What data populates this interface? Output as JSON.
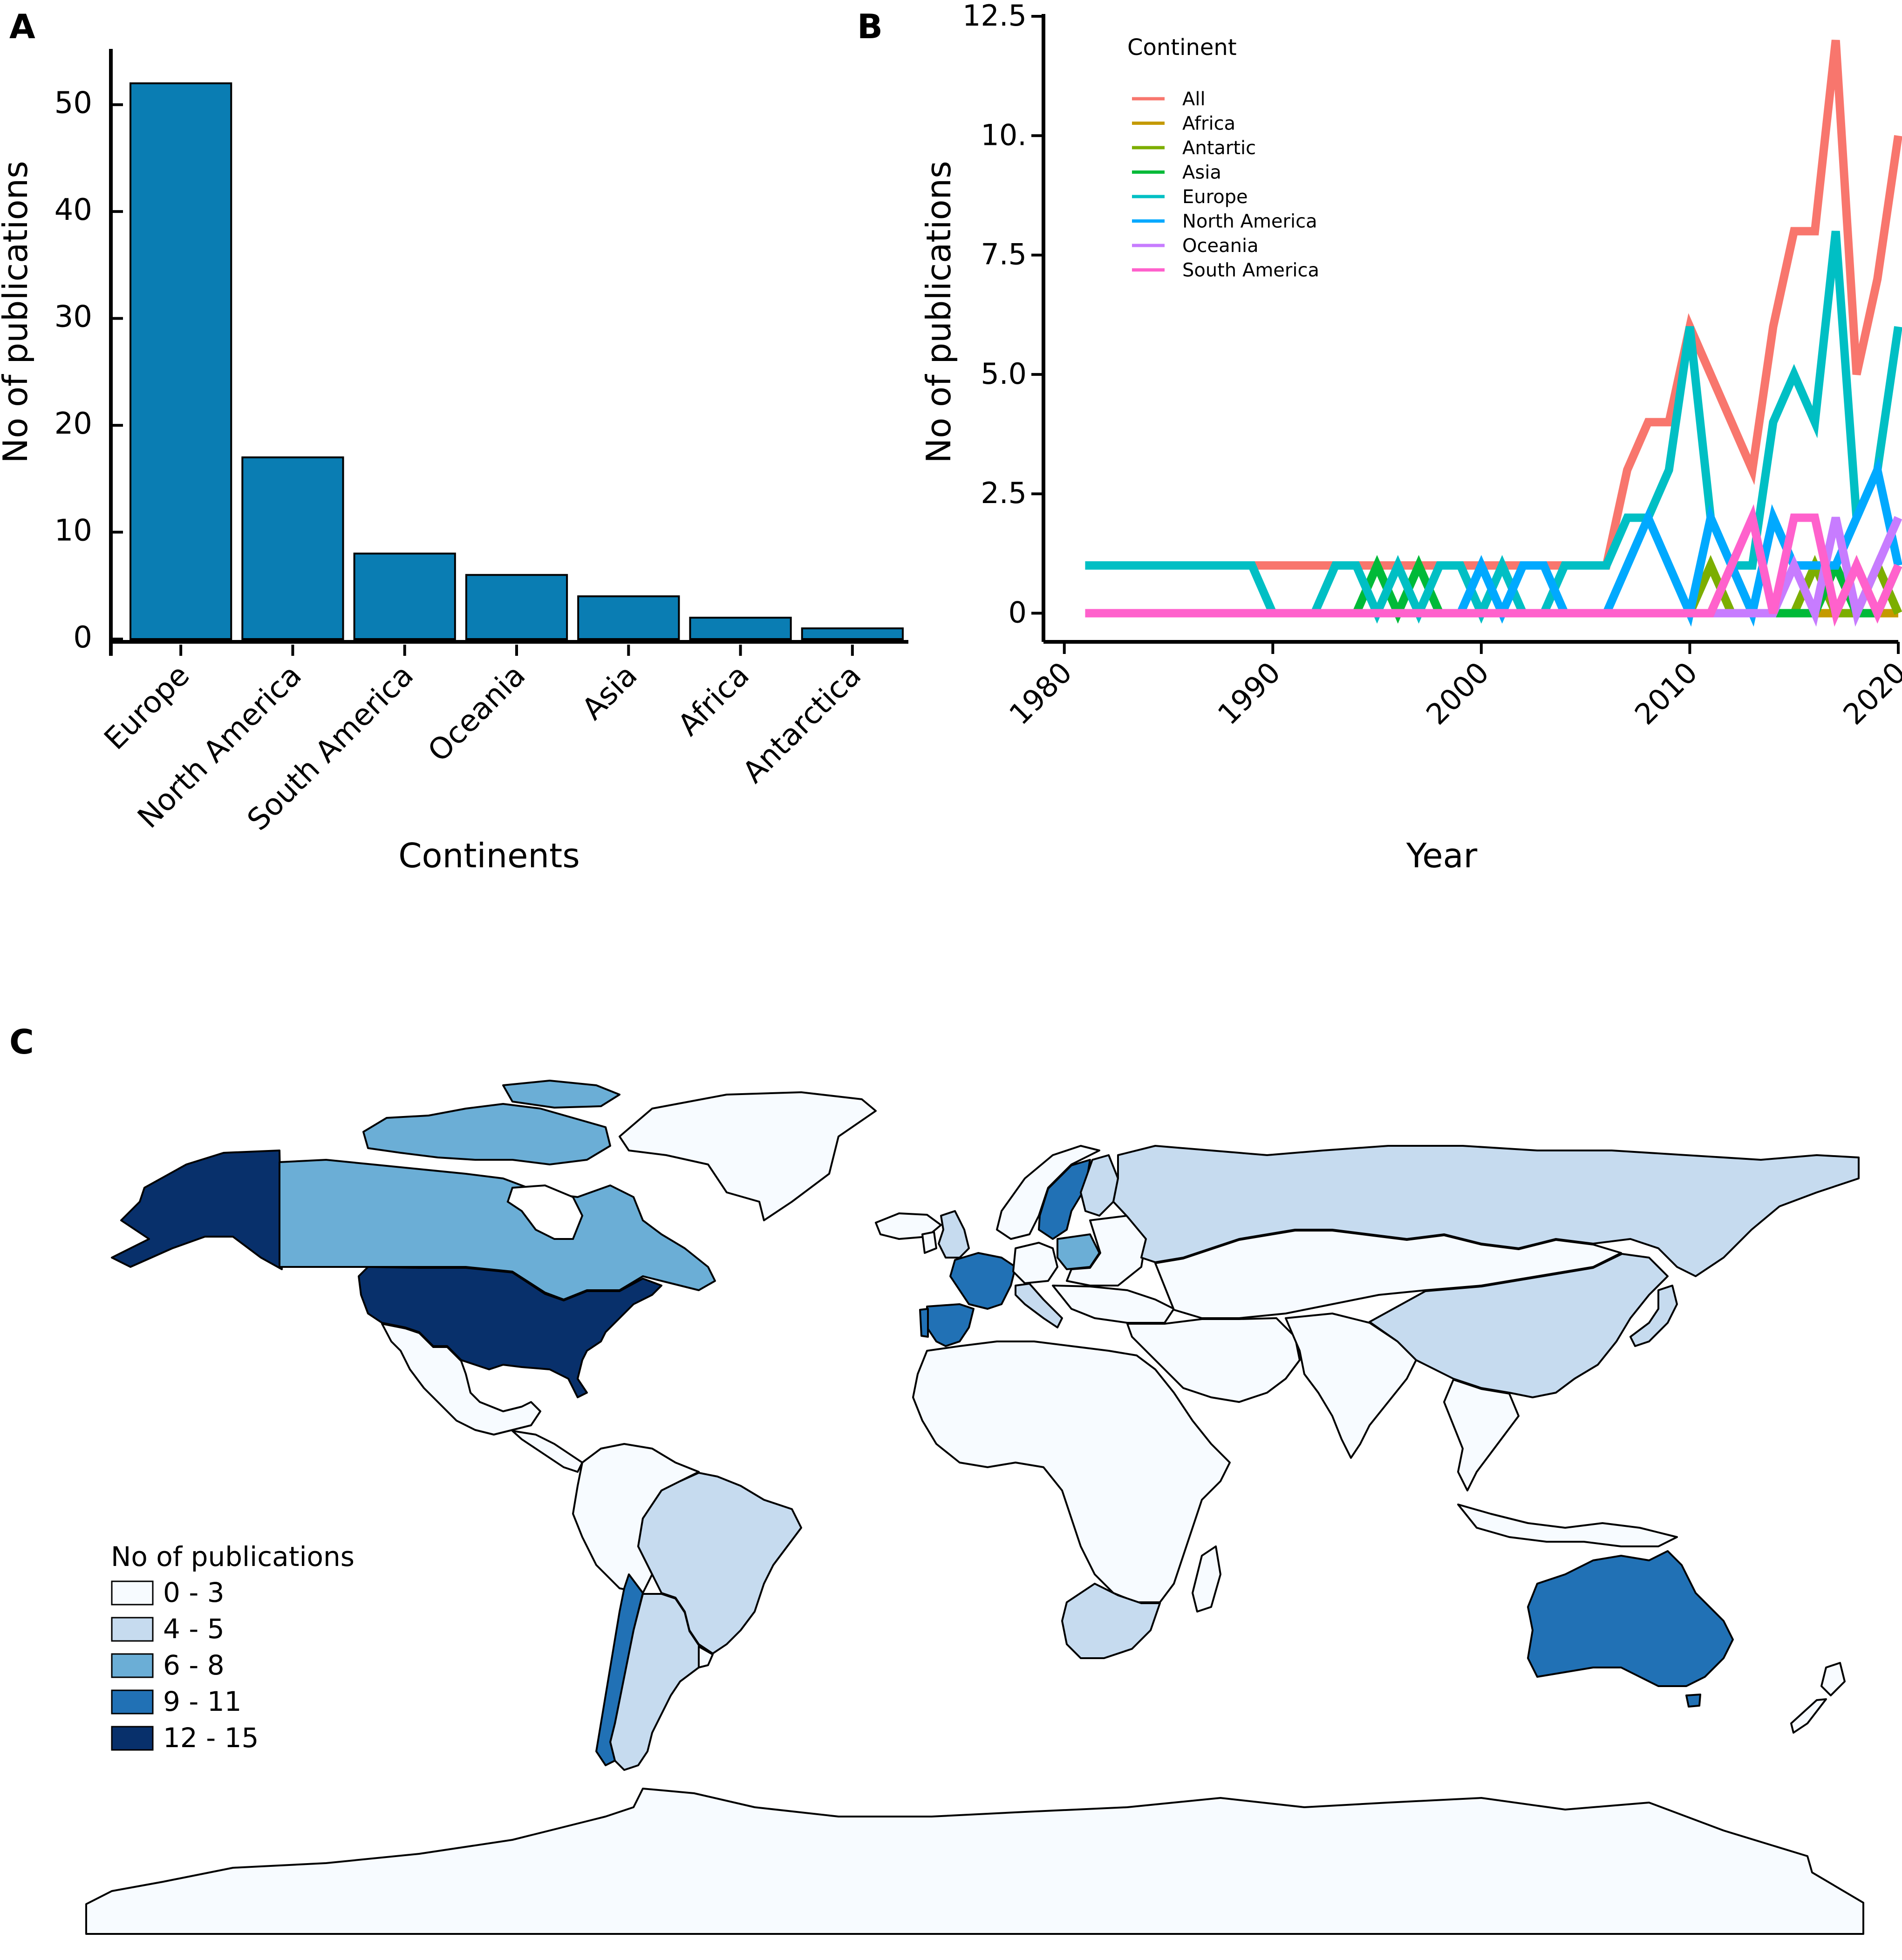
{
  "panels": {
    "a": {
      "letter": "A"
    },
    "b": {
      "letter": "B"
    },
    "c": {
      "letter": "C"
    }
  },
  "chart_data": [
    {
      "id": "A",
      "type": "bar",
      "title": "",
      "xlabel": "Continents",
      "ylabel": "No of publications",
      "categories": [
        "Europe",
        "North America",
        "South America",
        "Oceania",
        "Asia",
        "Africa",
        "Antarctica"
      ],
      "values": [
        52,
        17,
        8,
        6,
        4,
        2,
        1
      ],
      "ylim": [
        0,
        55
      ],
      "yticks": [
        0,
        10,
        20,
        30,
        40,
        50
      ],
      "bar_color": "#0a7db3",
      "grid": false
    },
    {
      "id": "B",
      "type": "line",
      "title": "",
      "xlabel": "Year",
      "ylabel": "No of publications",
      "xlim": [
        1979,
        2020
      ],
      "ylim": [
        -0.6,
        12.5
      ],
      "xticks": [
        1980,
        1990,
        2000,
        2010,
        2020
      ],
      "yticks": [
        0,
        2.5,
        5.0,
        7.5,
        10,
        12.5
      ],
      "ytick_labels": [
        "0",
        "2.5",
        "5.0",
        "7.5",
        "10.",
        "12.5"
      ],
      "legend_title": "Continent",
      "legend_position": "top-left",
      "x": [
        1981,
        1982,
        1983,
        1984,
        1985,
        1986,
        1987,
        1988,
        1989,
        1990,
        1991,
        1992,
        1993,
        1994,
        1995,
        1996,
        1997,
        1998,
        1999,
        2000,
        2001,
        2002,
        2003,
        2004,
        2005,
        2006,
        2007,
        2008,
        2009,
        2010,
        2011,
        2012,
        2013,
        2014,
        2015,
        2016,
        2017,
        2018,
        2019,
        2020
      ],
      "series": [
        {
          "name": "All",
          "color": "#f8766d",
          "values": [
            1,
            1,
            1,
            1,
            1,
            1,
            1,
            1,
            1,
            1,
            1,
            1,
            1,
            1,
            1,
            1,
            1,
            1,
            1,
            1,
            1,
            1,
            1,
            1,
            1,
            1,
            3,
            4,
            4,
            6,
            5,
            4,
            3,
            6,
            8,
            8,
            12,
            5,
            7,
            10
          ]
        },
        {
          "name": "Africa",
          "color": "#c49a00",
          "values": [
            0,
            0,
            0,
            0,
            0,
            0,
            0,
            0,
            0,
            0,
            0,
            0,
            0,
            0,
            0,
            0,
            0,
            0,
            0,
            0,
            0,
            0,
            0,
            0,
            0,
            0,
            0,
            0,
            0,
            0,
            0,
            1,
            0,
            0,
            0,
            0,
            0,
            1,
            0,
            0
          ]
        },
        {
          "name": "Antartic",
          "color": "#7cae00",
          "values": [
            0,
            0,
            0,
            0,
            0,
            0,
            0,
            0,
            0,
            0,
            0,
            0,
            0,
            0,
            0,
            0,
            0,
            0,
            0,
            0,
            0,
            0,
            0,
            0,
            0,
            0,
            0,
            0,
            0,
            0,
            1,
            0,
            0,
            0,
            0,
            1,
            0,
            0,
            1,
            0
          ]
        },
        {
          "name": "Asia",
          "color": "#00ba38",
          "values": [
            0,
            0,
            0,
            0,
            0,
            0,
            0,
            0,
            0,
            0,
            0,
            0,
            0,
            0,
            1,
            0,
            1,
            0,
            0,
            0,
            0,
            0,
            0,
            0,
            0,
            0,
            0,
            0,
            0,
            0,
            0,
            0,
            0,
            0,
            0,
            0,
            1,
            0,
            0,
            1
          ]
        },
        {
          "name": "Europe",
          "color": "#00bfc4",
          "values": [
            1,
            1,
            1,
            1,
            1,
            1,
            1,
            1,
            1,
            0,
            0,
            0,
            1,
            1,
            0,
            1,
            0,
            1,
            1,
            0,
            1,
            0,
            0,
            1,
            1,
            1,
            2,
            2,
            3,
            6,
            2,
            1,
            1,
            4,
            5,
            4,
            8,
            2,
            3,
            6
          ]
        },
        {
          "name": "North America",
          "color": "#00a9ff",
          "values": [
            0,
            0,
            0,
            0,
            0,
            0,
            0,
            0,
            0,
            0,
            0,
            0,
            0,
            0,
            0,
            0,
            0,
            0,
            0,
            1,
            0,
            1,
            1,
            0,
            0,
            0,
            1,
            2,
            1,
            0,
            2,
            1,
            0,
            2,
            1,
            1,
            1,
            2,
            3,
            1
          ]
        },
        {
          "name": "Oceania",
          "color": "#c77cff",
          "values": [
            0,
            0,
            0,
            0,
            0,
            0,
            0,
            0,
            0,
            0,
            0,
            0,
            0,
            0,
            0,
            0,
            0,
            0,
            0,
            0,
            0,
            0,
            0,
            0,
            0,
            0,
            0,
            0,
            0,
            0,
            0,
            0,
            0,
            0,
            1,
            0,
            2,
            0,
            1,
            2
          ]
        },
        {
          "name": "South America",
          "color": "#ff61cc",
          "values": [
            0,
            0,
            0,
            0,
            0,
            0,
            0,
            0,
            0,
            0,
            0,
            0,
            0,
            0,
            0,
            0,
            0,
            0,
            0,
            0,
            0,
            0,
            0,
            0,
            0,
            0,
            0,
            0,
            0,
            0,
            0,
            1,
            2,
            0,
            2,
            2,
            0,
            1,
            0,
            1
          ]
        }
      ]
    },
    {
      "id": "C",
      "type": "choropleth",
      "title": "",
      "legend_title": "No of publications",
      "legend_position": "bottom-left",
      "bins": [
        {
          "label": "0 - 3",
          "color": "#f7fbff"
        },
        {
          "label": "4 - 5",
          "color": "#c6dbef"
        },
        {
          "label": "6 - 8",
          "color": "#6baed6"
        },
        {
          "label": "9 - 11",
          "color": "#2171b5"
        },
        {
          "label": "12 - 15",
          "color": "#08306b"
        }
      ],
      "regions": [
        {
          "name": "Alaska",
          "bin": "12 - 15"
        },
        {
          "name": "Canada",
          "bin": "6 - 8"
        },
        {
          "name": "United States",
          "bin": "12 - 15"
        },
        {
          "name": "Greenland",
          "bin": "0 - 3"
        },
        {
          "name": "Mexico",
          "bin": "0 - 3"
        },
        {
          "name": "Central America",
          "bin": "0 - 3"
        },
        {
          "name": "Colombia",
          "bin": "0 - 3"
        },
        {
          "name": "Brazil",
          "bin": "4 - 5"
        },
        {
          "name": "Argentina",
          "bin": "4 - 5"
        },
        {
          "name": "Chile",
          "bin": "9 - 11"
        },
        {
          "name": "Peru",
          "bin": "0 - 3"
        },
        {
          "name": "United Kingdom",
          "bin": "4 - 5"
        },
        {
          "name": "France",
          "bin": "9 - 11"
        },
        {
          "name": "Spain",
          "bin": "9 - 11"
        },
        {
          "name": "Germany",
          "bin": "0 - 3"
        },
        {
          "name": "Poland",
          "bin": "6 - 8"
        },
        {
          "name": "Sweden",
          "bin": "9 - 11"
        },
        {
          "name": "Norway",
          "bin": "0 - 3"
        },
        {
          "name": "Finland",
          "bin": "4 - 5"
        },
        {
          "name": "Italy",
          "bin": "4 - 5"
        },
        {
          "name": "Russia",
          "bin": "4 - 5"
        },
        {
          "name": "China",
          "bin": "4 - 5"
        },
        {
          "name": "Japan",
          "bin": "4 - 5"
        },
        {
          "name": "Middle East",
          "bin": "0 - 3"
        },
        {
          "name": "India",
          "bin": "0 - 3"
        },
        {
          "name": "Africa",
          "bin": "0 - 3"
        },
        {
          "name": "South Africa",
          "bin": "4 - 5"
        },
        {
          "name": "Southeast Asia",
          "bin": "0 - 3"
        },
        {
          "name": "Australia",
          "bin": "9 - 11"
        },
        {
          "name": "New Zealand",
          "bin": "0 - 3"
        },
        {
          "name": "Antarctica",
          "bin": "0 - 3"
        }
      ]
    }
  ]
}
